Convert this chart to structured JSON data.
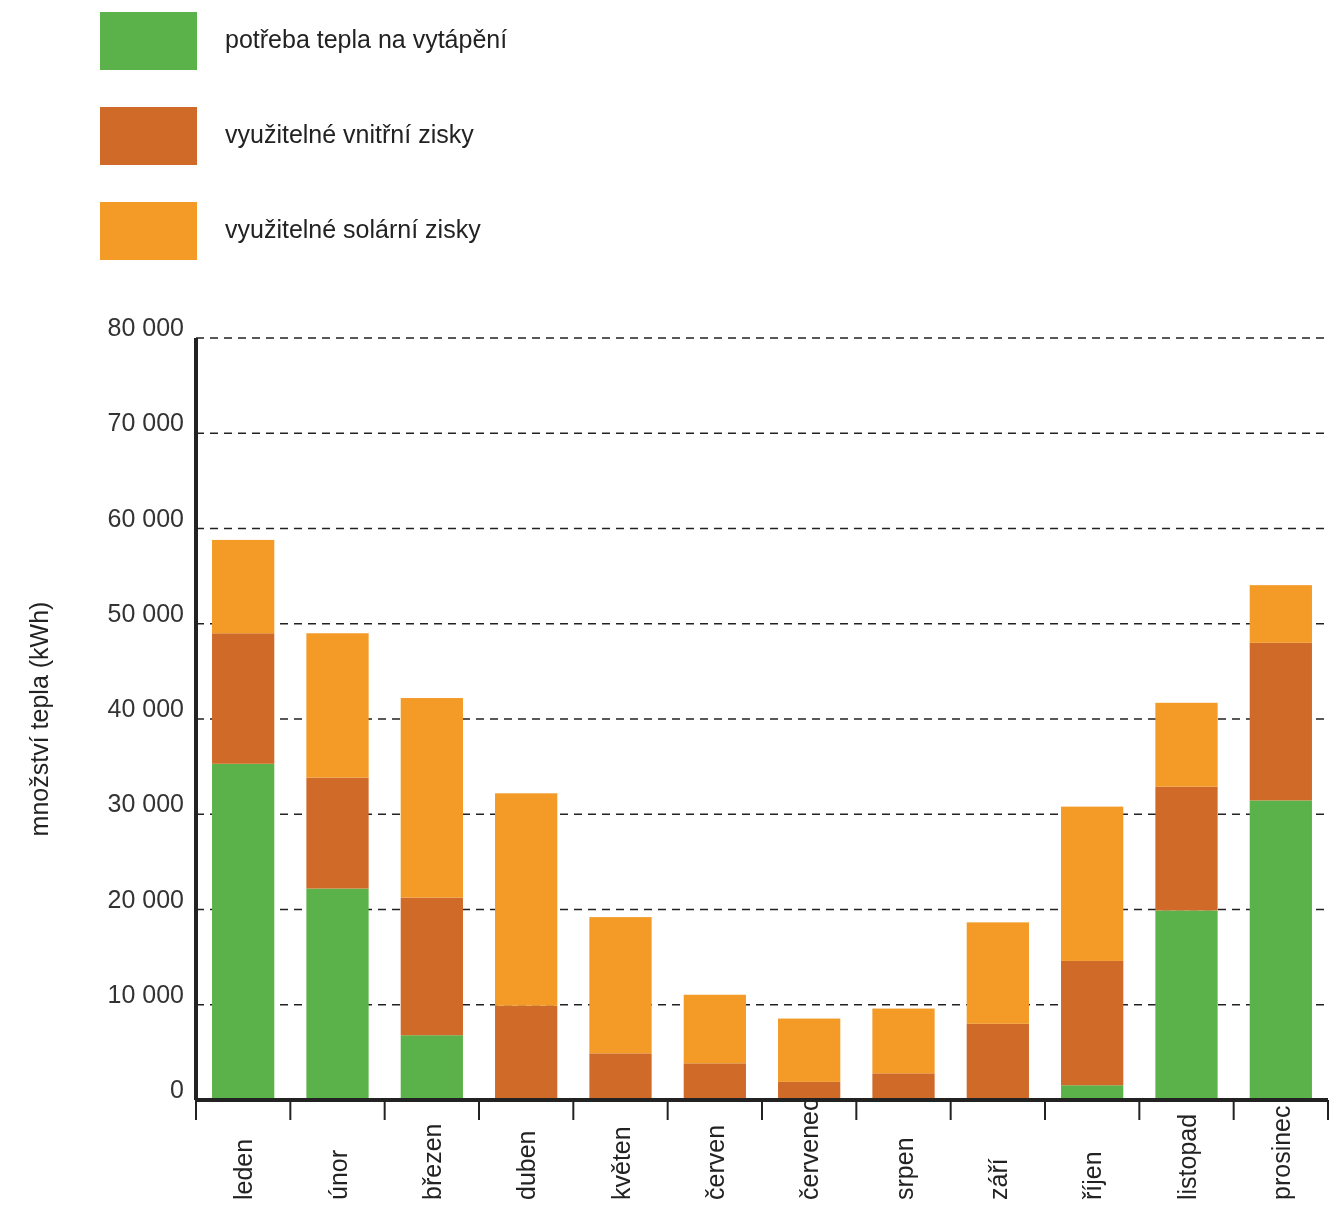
{
  "chart_data": {
    "type": "bar",
    "stacked": true,
    "ylabel": "množství tepla (kWh)",
    "categories": [
      "leden",
      "únor",
      "březen",
      "duben",
      "květen",
      "červen",
      "červenec",
      "srpen",
      "září",
      "říjen",
      "listopad",
      "prosinec"
    ],
    "series": [
      {
        "name": "potřeba tepla na vytápění",
        "color": "#5cb24a",
        "values": [
          35300,
          22200,
          6800,
          0,
          0,
          0,
          0,
          0,
          0,
          1550,
          19900,
          31450
        ]
      },
      {
        "name": "využitelné vnitřní zisky",
        "color": "#cf6a28",
        "values": [
          13700,
          11650,
          14450,
          9900,
          4900,
          3850,
          1900,
          2800,
          8000,
          13050,
          13000,
          16550
        ]
      },
      {
        "name": "využitelné solární zisky",
        "color": "#f39a27",
        "values": [
          9800,
          15150,
          20950,
          22300,
          14300,
          7200,
          6650,
          6800,
          10650,
          16200,
          8800,
          6050
        ]
      }
    ],
    "ylim": [
      0,
      80000
    ],
    "yticks": [
      0,
      {
        "value": 10000,
        "label": "10 000"
      },
      {
        "value": 20000,
        "label": "20 000"
      },
      {
        "value": 30000,
        "label": "30 000"
      },
      {
        "value": 40000,
        "label": "40 000"
      },
      {
        "value": 50000,
        "label": "50 000"
      },
      {
        "value": 60000,
        "label": "60 000"
      },
      {
        "value": 70000,
        "label": "70 000"
      },
      {
        "value": 80000,
        "label": "80 000"
      }
    ],
    "grid": "y",
    "legend": "top",
    "line_style": "dashed"
  }
}
